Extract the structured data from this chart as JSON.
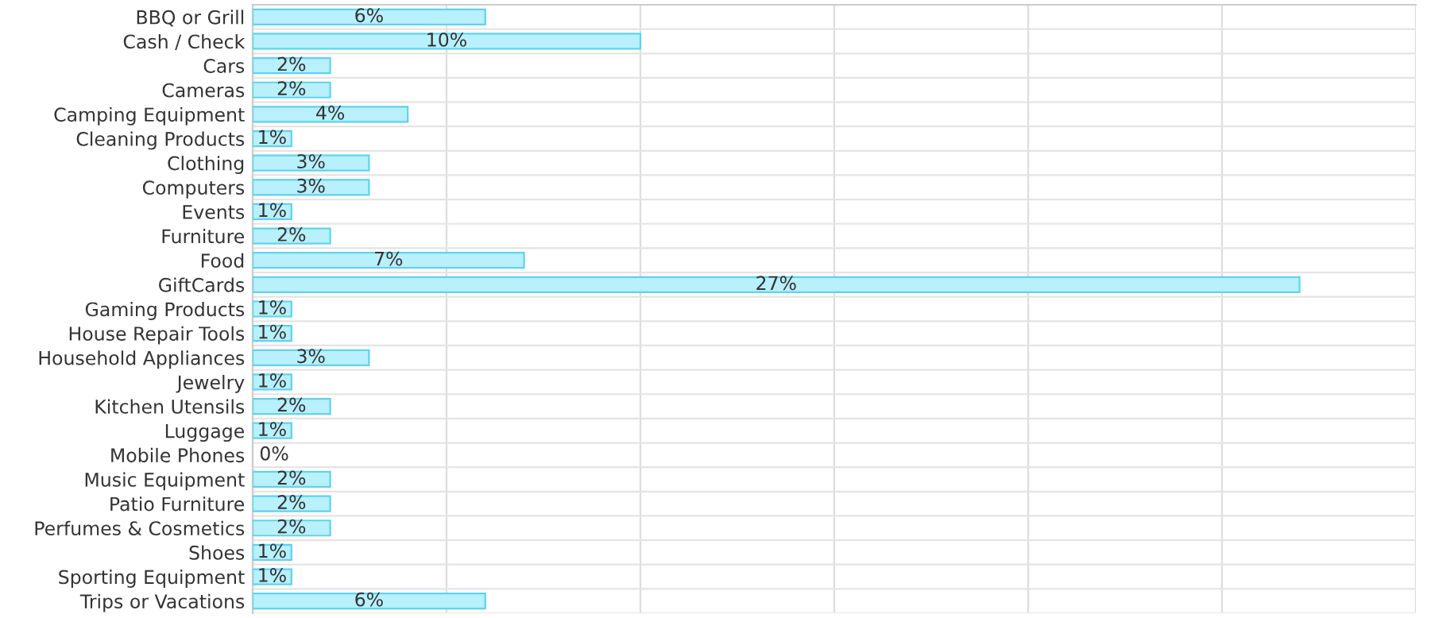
{
  "chart_data": {
    "type": "bar",
    "orientation": "horizontal",
    "categories": [
      "BBQ or Grill",
      "Cash / Check",
      "Cars",
      "Cameras",
      "Camping Equipment",
      "Cleaning Products",
      "Clothing",
      "Computers",
      "Events",
      "Furniture",
      "Food",
      "GiftCards",
      "Gaming Products",
      "House Repair Tools",
      "Household Appliances",
      "Jewelry",
      "Kitchen Utensils",
      "Luggage",
      "Mobile Phones",
      "Music Equipment",
      "Patio Furniture",
      "Perfumes & Cosmetics",
      "Shoes",
      "Sporting Equipment",
      "Trips or Vacations"
    ],
    "values": [
      6,
      10,
      2,
      2,
      4,
      1,
      3,
      3,
      1,
      2,
      7,
      27,
      1,
      1,
      3,
      1,
      2,
      1,
      0,
      2,
      2,
      2,
      1,
      1,
      6
    ],
    "value_labels": [
      "6%",
      "10%",
      "2%",
      "2%",
      "4%",
      "1%",
      "3%",
      "3%",
      "1%",
      "2%",
      "7%",
      "27%",
      "1%",
      "1%",
      "3%",
      "1%",
      "2%",
      "1%",
      "0%",
      "2%",
      "2%",
      "2%",
      "1%",
      "1%",
      "6%"
    ],
    "color": "#b8f0fb",
    "xlim": [
      0,
      30
    ],
    "xticks": [
      {
        "value": 0,
        "label": null
      },
      {
        "value": 5,
        "label": null
      },
      {
        "value": 10,
        "label": null
      },
      {
        "value": 15,
        "label": null
      },
      {
        "value": 20,
        "label": null
      },
      {
        "value": 25,
        "label": null
      },
      {
        "value": 30,
        "label": null
      }
    ],
    "tick_labels": "y",
    "grid": true,
    "legend": false
  }
}
